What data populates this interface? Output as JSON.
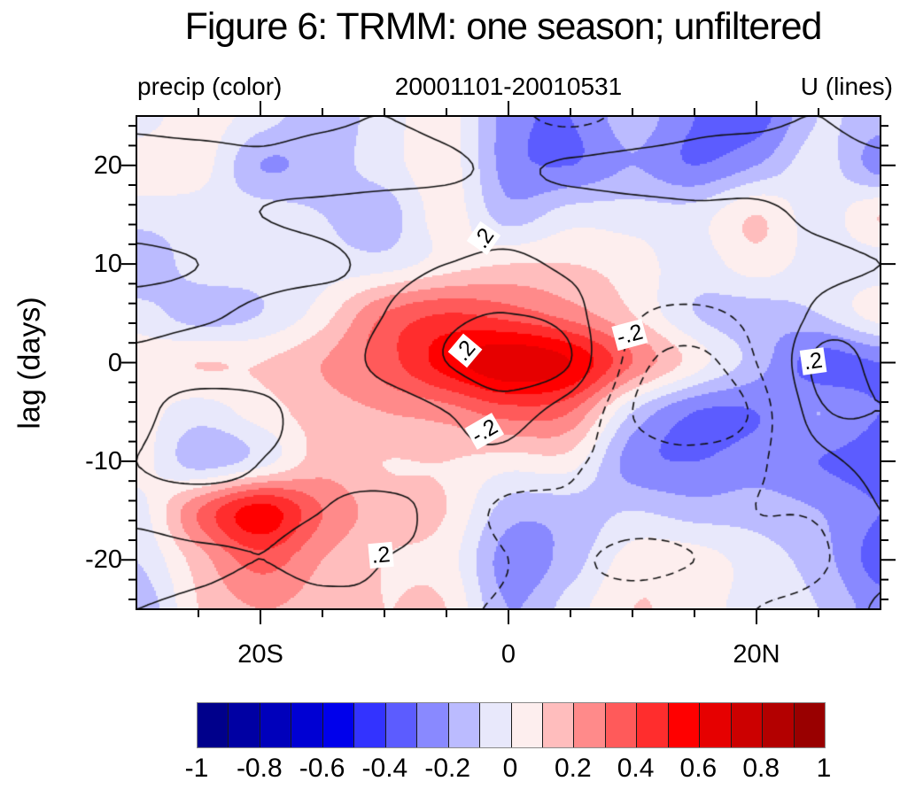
{
  "title": "Figure 6: TRMM: one season; unfiltered",
  "header": {
    "left": "precip (color)",
    "center": "20001101-20010531",
    "right": "U (lines)"
  },
  "axes": {
    "y": {
      "label": "lag (days)",
      "range": [
        -25,
        25
      ],
      "minor_step": 2,
      "major": [
        {
          "v": 20,
          "t": "20"
        },
        {
          "v": 10,
          "t": "10"
        },
        {
          "v": 0,
          "t": "0"
        },
        {
          "v": -10,
          "t": "-10"
        },
        {
          "v": -20,
          "t": "-20"
        }
      ]
    },
    "x": {
      "range": [
        -30,
        30
      ],
      "minor_step": 5,
      "major": [
        {
          "v": -20,
          "t": "20S"
        },
        {
          "v": 0,
          "t": "0"
        },
        {
          "v": 20,
          "t": "20N"
        }
      ]
    }
  },
  "colorbar": {
    "labels": [
      "-1",
      "-0.8",
      "-0.6",
      "-0.4",
      "-0.2",
      "0",
      "0.2",
      "0.4",
      "0.6",
      "0.8",
      "1"
    ],
    "min": -1,
    "max": 1,
    "step": 0.1,
    "colors": [
      "#00008B",
      "#0000A3",
      "#0000BB",
      "#0000D3",
      "#0000EB",
      "#3333FF",
      "#5C5CFF",
      "#8989FF",
      "#BBBBFF",
      "#E8E8FB",
      "#FDEEEE",
      "#FFBDBD",
      "#FF8A8A",
      "#FF5A5A",
      "#FF2D2D",
      "#FF0000",
      "#E60000",
      "#CC0000",
      "#B30000",
      "#990000"
    ]
  },
  "chart_data": {
    "type": "heatmap",
    "title": "Figure 6: TRMM: one season; unfiltered",
    "subtitle_left": "precip (color)",
    "subtitle_center": "20001101-20010531",
    "subtitle_right": "U (lines)",
    "xlabel": "",
    "ylabel": "lag (days)",
    "xlim": [
      -30,
      30
    ],
    "ylim": [
      -25,
      25
    ],
    "lats": [
      -30,
      -25,
      -20,
      -15,
      -10,
      -5,
      0,
      5,
      10,
      15,
      20,
      25,
      30
    ],
    "lags": [
      25,
      20,
      15,
      10,
      5,
      0,
      -5,
      -10,
      -15,
      -20,
      -25
    ],
    "precip_corr_grid": [
      [
        -0.05,
        0.05,
        -0.05,
        -0.15,
        -0.05,
        0.05,
        -0.25,
        -0.3,
        -0.15,
        -0.3,
        -0.35,
        -0.1,
        -0.15
      ],
      [
        0.05,
        0.05,
        -0.2,
        -0.15,
        -0.05,
        0.05,
        -0.25,
        -0.3,
        -0.2,
        -0.3,
        -0.2,
        -0.05,
        -0.25
      ],
      [
        -0.05,
        -0.05,
        -0.05,
        -0.1,
        -0.15,
        0.05,
        -0.15,
        -0.05,
        -0.05,
        -0.05,
        0.1,
        -0.05,
        0.1
      ],
      [
        -0.2,
        -0.05,
        -0.05,
        -0.05,
        -0.05,
        0.05,
        0.1,
        0.1,
        0.05,
        -0.05,
        0.05,
        -0.05,
        -0.05
      ],
      [
        -0.05,
        -0.15,
        -0.1,
        0.05,
        0.3,
        0.4,
        0.35,
        0.25,
        0.1,
        -0.1,
        -0.15,
        -0.1,
        0.05
      ],
      [
        0.05,
        0.1,
        0.1,
        0.2,
        0.35,
        0.55,
        0.68,
        0.6,
        0.3,
        0.05,
        -0.15,
        -0.35,
        -0.3
      ],
      [
        0.05,
        -0.05,
        0.05,
        0.15,
        0.2,
        0.25,
        0.35,
        0.3,
        -0.1,
        -0.3,
        -0.3,
        -0.2,
        -0.3
      ],
      [
        0.05,
        -0.15,
        -0.05,
        0.15,
        0.1,
        0.1,
        0.05,
        0.05,
        -0.25,
        -0.3,
        -0.25,
        -0.3,
        -0.35
      ],
      [
        -0.05,
        0.3,
        0.55,
        0.3,
        0.15,
        0.1,
        -0.15,
        -0.15,
        -0.1,
        -0.15,
        -0.15,
        -0.2,
        -0.3
      ],
      [
        -0.1,
        0.15,
        0.35,
        0.2,
        0.1,
        0.05,
        -0.25,
        -0.15,
        0.05,
        0.05,
        -0.05,
        -0.15,
        -0.35
      ],
      [
        -0.2,
        0.1,
        0.2,
        0.15,
        0.1,
        0.1,
        -0.2,
        -0.05,
        0.1,
        0.05,
        -0.05,
        -0.1,
        -0.25
      ]
    ],
    "u_corr_grid": [
      [
        0.15,
        0.1,
        0.1,
        0.15,
        0.2,
        0.1,
        -0.1,
        -0.3,
        -0.1,
        0.1,
        0.15,
        0.2,
        0.1
      ],
      [
        0.3,
        0.3,
        0.25,
        0.3,
        0.3,
        0.25,
        0.15,
        0.25,
        0.3,
        0.3,
        0.3,
        0.3,
        0.25
      ],
      [
        0.3,
        0.25,
        0.2,
        0.15,
        0.1,
        0.1,
        0.1,
        0.05,
        0.1,
        0.15,
        0.15,
        0.25,
        0.3
      ],
      [
        0.45,
        0.4,
        0.3,
        0.25,
        0.15,
        0.2,
        0.25,
        0.15,
        0.05,
        0.05,
        0.1,
        0.15,
        0.2
      ],
      [
        0.3,
        0.25,
        0.15,
        0.1,
        0.2,
        0.35,
        0.4,
        0.3,
        -0.15,
        -0.25,
        -0.1,
        0.25,
        0.3
      ],
      [
        0.15,
        0.1,
        0.1,
        0.1,
        0.25,
        0.4,
        0.5,
        0.4,
        -0.3,
        -0.45,
        -0.2,
        0.45,
        0.35
      ],
      [
        0.15,
        0.3,
        0.25,
        0.1,
        0.1,
        0.2,
        0.3,
        0.05,
        -0.4,
        -0.5,
        -0.35,
        0.35,
        0.4
      ],
      [
        0.2,
        0.3,
        0.2,
        0.15,
        0.1,
        0.15,
        0.1,
        -0.15,
        -0.3,
        -0.35,
        -0.25,
        0.1,
        0.3
      ],
      [
        0.15,
        0.1,
        0.15,
        0.2,
        0.25,
        0.1,
        -0.3,
        -0.25,
        -0.3,
        -0.3,
        -0.2,
        -0.15,
        0.2
      ],
      [
        0.3,
        0.25,
        0.2,
        0.25,
        0.2,
        0.1,
        -0.2,
        -0.35,
        -0.45,
        -0.4,
        -0.3,
        -0.25,
        0.1
      ],
      [
        0.2,
        0.15,
        0.1,
        0.15,
        0.15,
        -0.1,
        -0.25,
        -0.3,
        -0.3,
        -0.25,
        -0.2,
        -0.1,
        0.25
      ]
    ],
    "u_contour_levels": [
      -0.4,
      -0.2,
      0.2,
      0.4
    ],
    "contour_line_style": {
      "positive": "solid",
      "negative": "dashed",
      "color": "#111111"
    },
    "contour_labels": [
      {
        "text": ".2",
        "lat": -2.0,
        "lag": 12.6,
        "rot": -55
      },
      {
        "text": ".2",
        "lat": -3.5,
        "lag": 1.2,
        "rot": -50
      },
      {
        "text": "-.2",
        "lat": 9.8,
        "lag": 2.8,
        "rot": -15
      },
      {
        "text": "-.2",
        "lat": -1.9,
        "lag": -7.0,
        "rot": -30
      },
      {
        "text": ".2",
        "lat": 24.6,
        "lag": 0.1,
        "rot": -8
      },
      {
        "text": ".2",
        "lat": -10.3,
        "lag": -19.5,
        "rot": -5
      }
    ],
    "legend_position": "bottom-colorbar",
    "grid": false
  }
}
